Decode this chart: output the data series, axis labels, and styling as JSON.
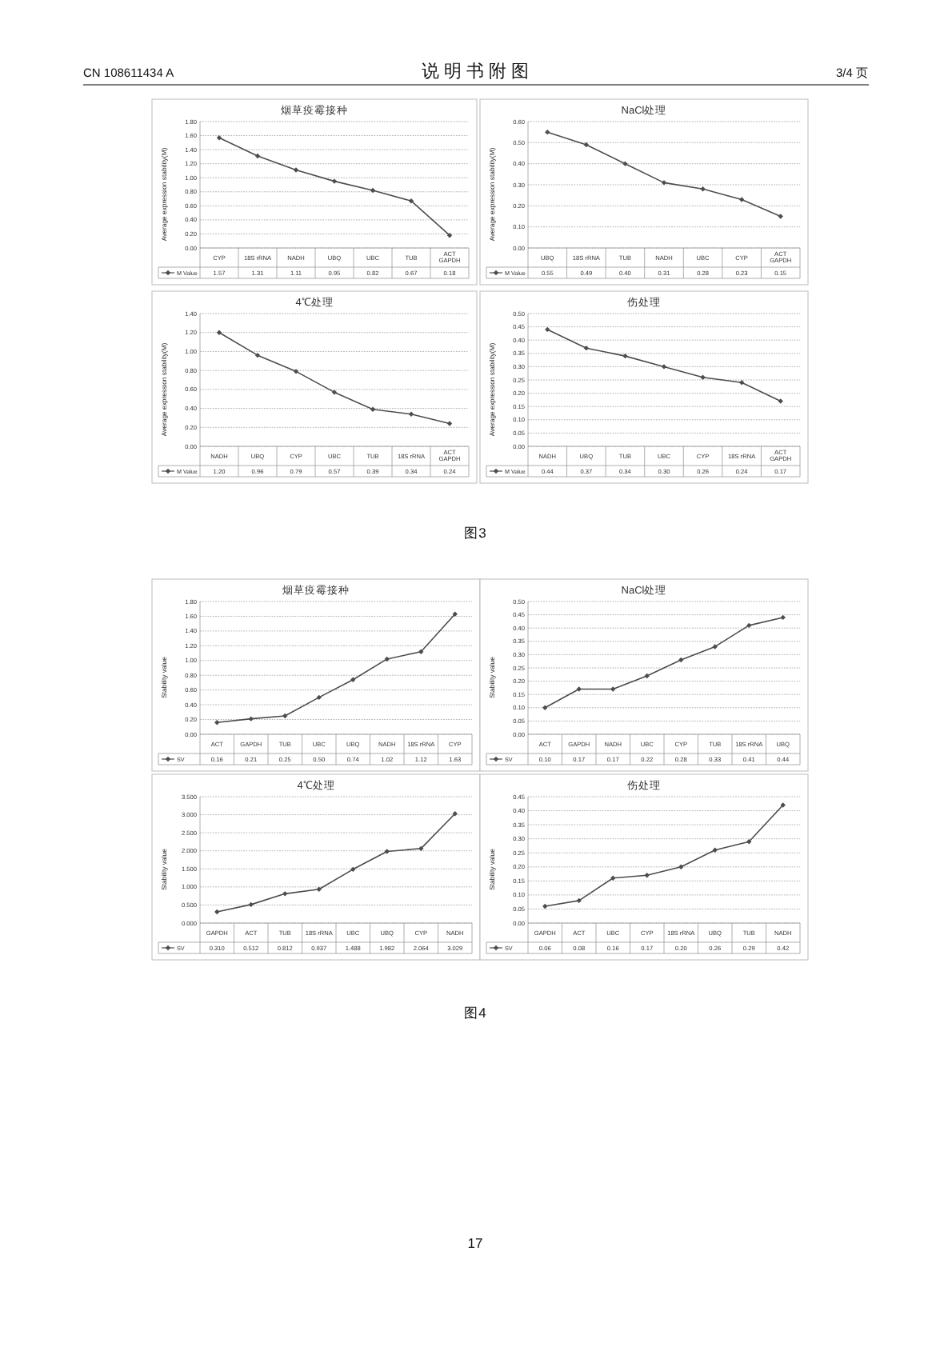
{
  "chart_data": [
    {
      "type": "line",
      "title": "烟草疫霉接种",
      "ylabel": "Average expression stability(M)",
      "categories": [
        "CYP",
        "18S rRNA",
        "NADH",
        "UBQ",
        "UBC",
        "TUB",
        "ACT GAPDH"
      ],
      "series": [
        {
          "name": "M Value",
          "color": "#4d4d4d",
          "values": [
            1.57,
            1.31,
            1.11,
            0.95,
            0.82,
            0.67,
            0.18
          ],
          "value_labels": [
            "1.57",
            "1.31",
            "1.11",
            "0.95",
            "0.82",
            "0.67",
            "0.18"
          ]
        }
      ],
      "ylim": [
        0,
        1.8
      ],
      "yticks": [
        {
          "value": 0,
          "label": "0.00"
        },
        {
          "value": 0.2,
          "label": "0.20"
        },
        {
          "value": 0.4,
          "label": "0.40"
        },
        {
          "value": 0.6,
          "label": "0.60"
        },
        {
          "value": 0.8,
          "label": "0.80"
        },
        {
          "value": 1.0,
          "label": "1.00"
        },
        {
          "value": 1.2,
          "label": "1.20"
        },
        {
          "value": 1.4,
          "label": "1.40"
        },
        {
          "value": 1.6,
          "label": "1.60"
        },
        {
          "value": 1.8,
          "label": "1.80"
        }
      ],
      "grid": "y",
      "legend": "bottom",
      "marker": "diamond",
      "annotations": [
        "CN 108611434 A",
        "说 明 书 附 图",
        "3/4 页"
      ]
    },
    {
      "type": "line",
      "title": "NaCl处理",
      "ylabel": "Average expression stability(M)",
      "categories": [
        "UBQ",
        "18S rRNA",
        "TUB",
        "NADH",
        "UBC",
        "CYP",
        "ACT GAPDH"
      ],
      "series": [
        {
          "name": "M Value",
          "color": "#4d4d4d",
          "values": [
            0.55,
            0.49,
            0.4,
            0.31,
            0.28,
            0.23,
            0.15
          ],
          "value_labels": [
            "0.55",
            "0.49",
            "0.40",
            "0.31",
            "0.28",
            "0.23",
            "0.15"
          ]
        }
      ],
      "ylim": [
        0,
        0.6
      ],
      "yticks": [
        {
          "value": 0,
          "label": "0.00"
        },
        {
          "value": 0.1,
          "label": "0.10"
        },
        {
          "value": 0.2,
          "label": "0.20"
        },
        {
          "value": 0.3,
          "label": "0.30"
        },
        {
          "value": 0.4,
          "label": "0.40"
        },
        {
          "value": 0.5,
          "label": "0.50"
        },
        {
          "value": 0.6,
          "label": "0.60"
        }
      ],
      "grid": "y",
      "legend": "bottom",
      "marker": "diamond"
    },
    {
      "type": "line",
      "title": "4℃处理",
      "ylabel": "Average expression stability(M)",
      "categories": [
        "NADH",
        "UBQ",
        "CYP",
        "UBC",
        "TUB",
        "18S rRNA",
        "ACT GAPDH"
      ],
      "series": [
        {
          "name": "M Value",
          "color": "#4d4d4d",
          "values": [
            1.2,
            0.96,
            0.79,
            0.57,
            0.39,
            0.34,
            0.24
          ],
          "value_labels": [
            "1.20",
            "0.96",
            "0.79",
            "0.57",
            "0.39",
            "0.34",
            "0.24"
          ]
        }
      ],
      "ylim": [
        0,
        1.4
      ],
      "yticks": [
        {
          "value": 0,
          "label": "0.00"
        },
        {
          "value": 0.2,
          "label": "0.20"
        },
        {
          "value": 0.4,
          "label": "0.40"
        },
        {
          "value": 0.6,
          "label": "0.60"
        },
        {
          "value": 0.8,
          "label": "0.80"
        },
        {
          "value": 1.0,
          "label": "1.00"
        },
        {
          "value": 1.2,
          "label": "1.20"
        },
        {
          "value": 1.4,
          "label": "1.40"
        }
      ],
      "grid": "y",
      "legend": "bottom",
      "marker": "diamond"
    },
    {
      "type": "line",
      "title": "伤处理",
      "ylabel": "Average expression stability(M)",
      "categories": [
        "NADH",
        "UBQ",
        "TUB",
        "UBC",
        "CYP",
        "18S rRNA",
        "ACT GAPDH"
      ],
      "series": [
        {
          "name": "M Value",
          "color": "#4d4d4d",
          "values": [
            0.44,
            0.37,
            0.34,
            0.3,
            0.26,
            0.24,
            0.17
          ],
          "value_labels": [
            "0.44",
            "0.37",
            "0.34",
            "0.30",
            "0.26",
            "0.24",
            "0.17"
          ]
        }
      ],
      "ylim": [
        0,
        0.5
      ],
      "yticks": [
        {
          "value": 0,
          "label": "0.00"
        },
        {
          "value": 0.05,
          "label": "0.05"
        },
        {
          "value": 0.1,
          "label": "0.10"
        },
        {
          "value": 0.15,
          "label": "0.15"
        },
        {
          "value": 0.2,
          "label": "0.20"
        },
        {
          "value": 0.25,
          "label": "0.25"
        },
        {
          "value": 0.3,
          "label": "0.30"
        },
        {
          "value": 0.35,
          "label": "0.35"
        },
        {
          "value": 0.4,
          "label": "0.40"
        },
        {
          "value": 0.45,
          "label": "0.45"
        },
        {
          "value": 0.5,
          "label": "0.50"
        }
      ],
      "grid": "y",
      "legend": "bottom",
      "marker": "diamond",
      "annotations": [
        "图3"
      ]
    },
    {
      "type": "line",
      "title": "烟草疫霉接种",
      "ylabel": "Stability value",
      "categories": [
        "ACT",
        "GAPDH",
        "TUB",
        "UBC",
        "UBQ",
        "NADH",
        "18S rRNA",
        "CYP"
      ],
      "series": [
        {
          "name": "SV",
          "color": "#4d4d4d",
          "values": [
            0.16,
            0.21,
            0.25,
            0.5,
            0.74,
            1.02,
            1.12,
            1.63
          ],
          "value_labels": [
            "0.16",
            "0.21",
            "0.25",
            "0.50",
            "0.74",
            "1.02",
            "1.12",
            "1.63"
          ]
        }
      ],
      "ylim": [
        0,
        1.8
      ],
      "yticks": [
        {
          "value": 0,
          "label": "0.00"
        },
        {
          "value": 0.2,
          "label": "0.20"
        },
        {
          "value": 0.4,
          "label": "0.40"
        },
        {
          "value": 0.6,
          "label": "0.60"
        },
        {
          "value": 0.8,
          "label": "0.80"
        },
        {
          "value": 1.0,
          "label": "1.00"
        },
        {
          "value": 1.2,
          "label": "1.20"
        },
        {
          "value": 1.4,
          "label": "1.40"
        },
        {
          "value": 1.6,
          "label": "1.60"
        },
        {
          "value": 1.8,
          "label": "1.80"
        }
      ],
      "grid": "y",
      "legend": "bottom",
      "marker": "diamond"
    },
    {
      "type": "line",
      "title": "NaCl处理",
      "ylabel": "Stability value",
      "categories": [
        "ACT",
        "GAPDH",
        "NADH",
        "UBC",
        "CYP",
        "TUB",
        "18S rRNA",
        "UBQ"
      ],
      "series": [
        {
          "name": "SV",
          "color": "#4d4d4d",
          "values": [
            0.1,
            0.17,
            0.17,
            0.22,
            0.28,
            0.33,
            0.41,
            0.44
          ],
          "value_labels": [
            "0.10",
            "0.17",
            "0.17",
            "0.22",
            "0.28",
            "0.33",
            "0.41",
            "0.44"
          ]
        }
      ],
      "ylim": [
        0,
        0.5
      ],
      "yticks": [
        {
          "value": 0,
          "label": "0.00"
        },
        {
          "value": 0.05,
          "label": "0.05"
        },
        {
          "value": 0.1,
          "label": "0.10"
        },
        {
          "value": 0.15,
          "label": "0.15"
        },
        {
          "value": 0.2,
          "label": "0.20"
        },
        {
          "value": 0.25,
          "label": "0.25"
        },
        {
          "value": 0.3,
          "label": "0.30"
        },
        {
          "value": 0.35,
          "label": "0.35"
        },
        {
          "value": 0.4,
          "label": "0.40"
        },
        {
          "value": 0.45,
          "label": "0.45"
        },
        {
          "value": 0.5,
          "label": "0.50"
        }
      ],
      "grid": "y",
      "legend": "bottom",
      "marker": "diamond"
    },
    {
      "type": "line",
      "title": "4℃处理",
      "ylabel": "Stability value",
      "categories": [
        "GAPDH",
        "ACT",
        "TUB",
        "18S rRNA",
        "UBC",
        "UBQ",
        "CYP",
        "NADH"
      ],
      "series": [
        {
          "name": "SV",
          "color": "#4d4d4d",
          "values": [
            0.31,
            0.512,
            0.812,
            0.937,
            1.488,
            1.982,
            2.064,
            3.029
          ],
          "value_labels": [
            "0.310",
            "0.512",
            "0.812",
            "0.937",
            "1.488",
            "1.982",
            "2.064",
            "3.029"
          ]
        }
      ],
      "ylim": [
        0,
        3.5
      ],
      "yticks": [
        {
          "value": 0,
          "label": "0.000"
        },
        {
          "value": 0.5,
          "label": "0.500"
        },
        {
          "value": 1.0,
          "label": "1.000"
        },
        {
          "value": 1.5,
          "label": "1.500"
        },
        {
          "value": 2.0,
          "label": "2.000"
        },
        {
          "value": 2.5,
          "label": "2.500"
        },
        {
          "value": 3.0,
          "label": "3.000"
        },
        {
          "value": 3.5,
          "label": "3.500"
        }
      ],
      "grid": "y",
      "legend": "bottom",
      "marker": "diamond"
    },
    {
      "type": "line",
      "title": "伤处理",
      "ylabel": "Stability value",
      "categories": [
        "GAPDH",
        "ACT",
        "UBC",
        "CYP",
        "18S rRNA",
        "UBQ",
        "TUB",
        "NADH"
      ],
      "series": [
        {
          "name": "SV",
          "color": "#4d4d4d",
          "values": [
            0.06,
            0.08,
            0.16,
            0.17,
            0.2,
            0.26,
            0.29,
            0.42
          ],
          "value_labels": [
            "0.06",
            "0.08",
            "0.16",
            "0.17",
            "0.20",
            "0.26",
            "0.29",
            "0.42"
          ]
        }
      ],
      "ylim": [
        0,
        0.45
      ],
      "yticks": [
        {
          "value": 0,
          "label": "0.00"
        },
        {
          "value": 0.05,
          "label": "0.05"
        },
        {
          "value": 0.1,
          "label": "0.10"
        },
        {
          "value": 0.15,
          "label": "0.15"
        },
        {
          "value": 0.2,
          "label": "0.20"
        },
        {
          "value": 0.25,
          "label": "0.25"
        },
        {
          "value": 0.3,
          "label": "0.30"
        },
        {
          "value": 0.35,
          "label": "0.35"
        },
        {
          "value": 0.4,
          "label": "0.40"
        },
        {
          "value": 0.45,
          "label": "0.45"
        }
      ],
      "grid": "y",
      "legend": "bottom",
      "marker": "diamond",
      "annotations": [
        "图4",
        "17"
      ]
    }
  ]
}
